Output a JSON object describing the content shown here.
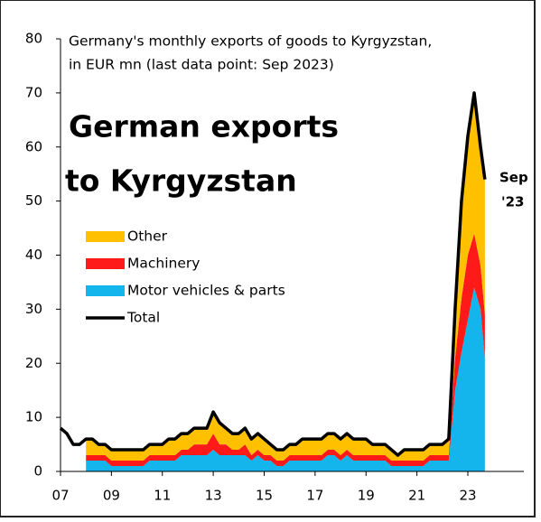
{
  "chart_data": {
    "type": "stacked-area",
    "title_lines": [
      "German exports",
      "to Kyrgyzstan"
    ],
    "note_lines": [
      "Germany's monthly exports of goods to Kyrgyzstan,",
      "in EUR mn (last data point: Sep 2023)"
    ],
    "annotation_lines": [
      "Sep",
      "'23"
    ],
    "x": [
      2007,
      2007.25,
      2007.5,
      2007.75,
      2008,
      2008.25,
      2008.5,
      2008.75,
      2009,
      2009.25,
      2009.5,
      2009.75,
      2010,
      2010.25,
      2010.5,
      2010.75,
      2011,
      2011.25,
      2011.5,
      2011.75,
      2012,
      2012.25,
      2012.5,
      2012.75,
      2013,
      2013.25,
      2013.5,
      2013.75,
      2014,
      2014.25,
      2014.5,
      2014.75,
      2015,
      2015.25,
      2015.5,
      2015.75,
      2016,
      2016.25,
      2016.5,
      2016.75,
      2017,
      2017.25,
      2017.5,
      2017.75,
      2018,
      2018.25,
      2018.5,
      2018.75,
      2019,
      2019.25,
      2019.5,
      2019.75,
      2020,
      2020.25,
      2020.5,
      2020.75,
      2021,
      2021.25,
      2021.5,
      2021.75,
      2022,
      2022.25,
      2022.5,
      2022.75,
      2023,
      2023.25,
      2023.5,
      2023.67
    ],
    "series": [
      {
        "name": "Motor vehicles & parts",
        "color": "#14b4ec",
        "values": [
          null,
          null,
          null,
          null,
          2,
          2,
          2,
          2,
          1,
          1,
          1,
          1,
          1,
          1,
          2,
          2,
          2,
          2,
          2,
          3,
          3,
          3,
          3,
          3,
          4,
          3,
          3,
          3,
          3,
          3,
          2,
          3,
          2,
          2,
          1,
          1,
          2,
          2,
          2,
          2,
          2,
          2,
          3,
          3,
          2,
          3,
          2,
          2,
          2,
          2,
          2,
          2,
          1,
          1,
          1,
          1,
          1,
          1,
          2,
          2,
          2,
          2,
          15,
          22,
          28,
          34,
          30,
          21
        ]
      },
      {
        "name": "Machinery",
        "color": "#ff1a1a",
        "values": [
          null,
          null,
          null,
          null,
          1,
          1,
          1,
          1,
          1,
          1,
          1,
          1,
          1,
          1,
          1,
          1,
          1,
          1,
          1,
          1,
          1,
          2,
          2,
          2,
          3,
          2,
          2,
          1,
          1,
          2,
          1,
          1,
          1,
          1,
          1,
          1,
          1,
          1,
          1,
          1,
          1,
          1,
          1,
          1,
          1,
          1,
          1,
          1,
          1,
          1,
          1,
          1,
          1,
          1,
          1,
          1,
          1,
          1,
          1,
          1,
          1,
          1,
          6,
          10,
          12,
          10,
          8,
          8
        ]
      },
      {
        "name": "Other",
        "color": "#ffc000",
        "values": [
          null,
          null,
          null,
          null,
          3,
          3,
          2,
          2,
          2,
          2,
          2,
          2,
          2,
          2,
          2,
          2,
          2,
          3,
          3,
          3,
          3,
          3,
          3,
          3,
          4,
          4,
          3,
          3,
          3,
          3,
          3,
          3,
          3,
          2,
          2,
          2,
          2,
          2,
          3,
          3,
          3,
          3,
          3,
          3,
          3,
          3,
          3,
          3,
          3,
          2,
          2,
          2,
          2,
          1,
          2,
          2,
          2,
          2,
          2,
          2,
          2,
          3,
          9,
          18,
          22,
          26,
          22,
          25
        ]
      },
      {
        "name": "Total",
        "color": "#000000",
        "line": true,
        "values": [
          8,
          7,
          5,
          5,
          6,
          6,
          5,
          5,
          4,
          4,
          4,
          4,
          4,
          4,
          5,
          5,
          5,
          6,
          6,
          7,
          7,
          8,
          8,
          8,
          11,
          9,
          8,
          7,
          7,
          8,
          6,
          7,
          6,
          5,
          4,
          4,
          5,
          5,
          6,
          6,
          6,
          6,
          7,
          7,
          6,
          7,
          6,
          6,
          6,
          5,
          5,
          5,
          4,
          3,
          4,
          4,
          4,
          4,
          5,
          5,
          5,
          6,
          30,
          50,
          62,
          70,
          60,
          54
        ]
      }
    ],
    "xlim": [
      2007,
      2025.2
    ],
    "xticks": [
      {
        "value": 2007,
        "label": "07"
      },
      {
        "value": 2009,
        "label": "09"
      },
      {
        "value": 2011,
        "label": "11"
      },
      {
        "value": 2013,
        "label": "13"
      },
      {
        "value": 2015,
        "label": "15"
      },
      {
        "value": 2017,
        "label": "17"
      },
      {
        "value": 2019,
        "label": "19"
      },
      {
        "value": 2021,
        "label": "21"
      },
      {
        "value": 2023,
        "label": "23"
      }
    ],
    "ylim": [
      0,
      80
    ],
    "yticks": [
      0,
      10,
      20,
      30,
      40,
      50,
      60,
      70,
      80
    ]
  }
}
